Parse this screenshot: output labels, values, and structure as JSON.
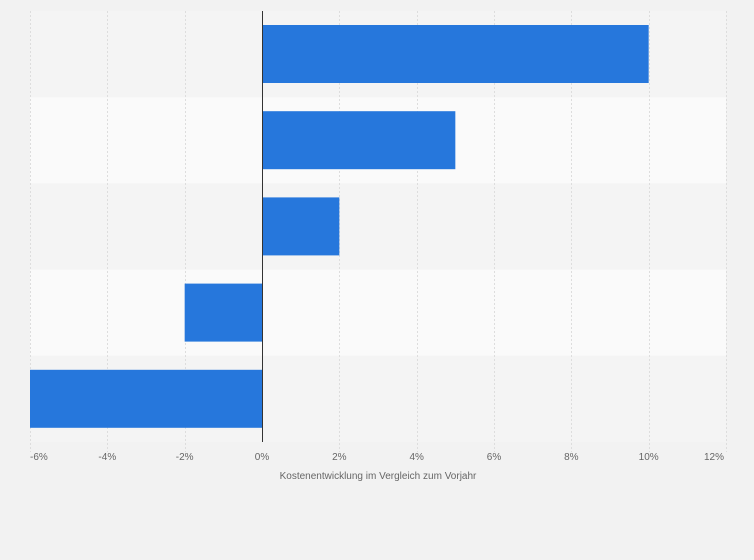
{
  "chart_data": {
    "type": "bar",
    "orientation": "horizontal",
    "categories": [
      "",
      "",
      "",
      "",
      ""
    ],
    "values": [
      10,
      5,
      2,
      -2,
      -6
    ],
    "xlabel": "Kostenentwicklung im Vergleich zum Vorjahr",
    "xlim": [
      -6,
      12
    ],
    "xticks": [
      -6,
      -4,
      -2,
      0,
      2,
      4,
      6,
      8,
      10,
      12
    ],
    "tick_labels": [
      "-6%",
      "-4%",
      "-2%",
      "0%",
      "2%",
      "4%",
      "6%",
      "8%",
      "10%",
      "12%"
    ],
    "grid": "vertical",
    "colors": {
      "bar": "#2677dc",
      "background": "#f2f2f2",
      "band_light": "#fafafa",
      "band_dark": "#f4f4f4",
      "grid": "#dddddd",
      "zero_line": "#333333",
      "text": "#666666"
    }
  }
}
